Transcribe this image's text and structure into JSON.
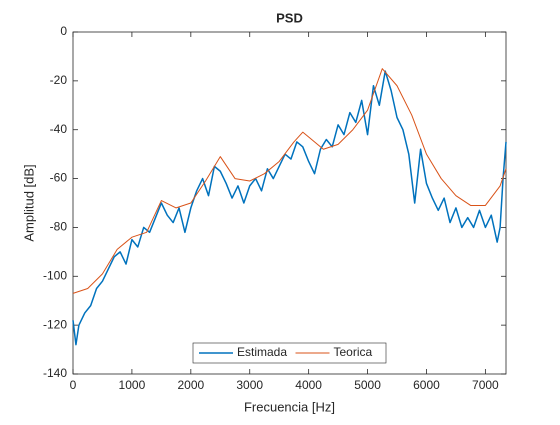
{
  "chart_data": {
    "type": "line",
    "title": "PSD",
    "xlabel": "Frecuencia [Hz]",
    "ylabel": "Amplitud [dB]",
    "xlim": [
      0,
      7350
    ],
    "ylim": [
      -140,
      0
    ],
    "xticks": [
      0,
      1000,
      2000,
      3000,
      4000,
      5000,
      6000,
      7000
    ],
    "yticks": [
      -140,
      -120,
      -100,
      -80,
      -60,
      -40,
      -20,
      0
    ],
    "legend": "south",
    "series": [
      {
        "name": "Estimada",
        "color": "#0072BD",
        "x": [
          0,
          50,
          100,
          200,
          300,
          400,
          500,
          600,
          700,
          800,
          900,
          1000,
          1100,
          1200,
          1300,
          1400,
          1500,
          1600,
          1700,
          1800,
          1900,
          2000,
          2100,
          2200,
          2300,
          2400,
          2500,
          2600,
          2700,
          2800,
          2900,
          3000,
          3100,
          3200,
          3300,
          3400,
          3500,
          3600,
          3700,
          3800,
          3900,
          4000,
          4100,
          4200,
          4300,
          4400,
          4500,
          4600,
          4700,
          4800,
          4900,
          5000,
          5100,
          5200,
          5300,
          5400,
          5500,
          5600,
          5700,
          5800,
          5900,
          6000,
          6100,
          6200,
          6300,
          6400,
          6500,
          6600,
          6700,
          6800,
          6900,
          7000,
          7100,
          7200,
          7250,
          7300,
          7350
        ],
        "values": [
          -118,
          -128,
          -120,
          -115,
          -112,
          -105,
          -102,
          -97,
          -92,
          -90,
          -95,
          -85,
          -88,
          -80,
          -82,
          -76,
          -70,
          -75,
          -78,
          -72,
          -82,
          -72,
          -65,
          -60,
          -67,
          -55,
          -57,
          -62,
          -68,
          -63,
          -70,
          -63,
          -60,
          -65,
          -56,
          -60,
          -55,
          -50,
          -52,
          -45,
          -47,
          -53,
          -58,
          -48,
          -44,
          -47,
          -38,
          -42,
          -33,
          -37,
          -28,
          -42,
          -22,
          -30,
          -16,
          -24,
          -35,
          -40,
          -50,
          -70,
          -48,
          -62,
          -68,
          -73,
          -68,
          -78,
          -72,
          -80,
          -76,
          -80,
          -73,
          -80,
          -75,
          -86,
          -80,
          -60,
          -45
        ]
      },
      {
        "name": "Teorica",
        "color": "#D95319",
        "x": [
          0,
          250,
          500,
          750,
          1000,
          1250,
          1500,
          1750,
          2000,
          2250,
          2500,
          2750,
          3000,
          3250,
          3500,
          3750,
          3900,
          4000,
          4250,
          4500,
          4750,
          5000,
          5250,
          5500,
          5750,
          6000,
          6250,
          6500,
          6750,
          7000,
          7250,
          7350
        ],
        "values": [
          -107,
          -105,
          -99,
          -89,
          -84,
          -82,
          -69,
          -72,
          -70,
          -61,
          -51,
          -60,
          -61,
          -58,
          -53,
          -45,
          -41,
          -43,
          -48,
          -46,
          -40,
          -32,
          -15,
          -22,
          -34,
          -50,
          -60,
          -67,
          -71,
          -71,
          -63,
          -56
        ]
      }
    ]
  }
}
